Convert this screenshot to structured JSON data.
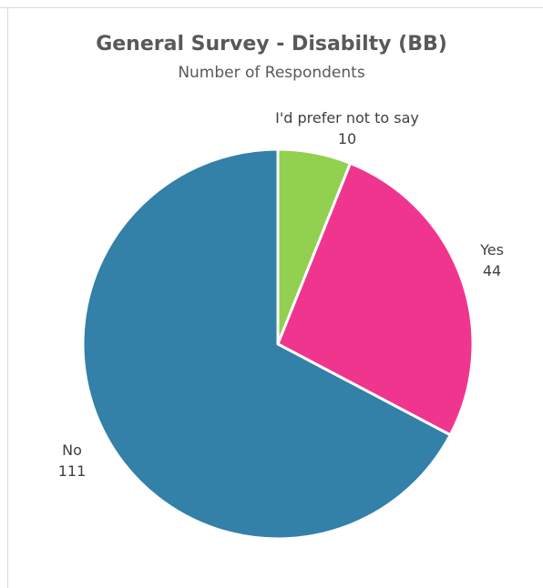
{
  "chart_data": {
    "type": "pie",
    "title": "General Survey - Disabilty (BB)",
    "subtitle": "Number of Respondents",
    "slices": [
      {
        "label": "I'd prefer not to say",
        "value": 10,
        "color": "#92d050"
      },
      {
        "label": "Yes",
        "value": 44,
        "color": "#f0358e"
      },
      {
        "label": "No",
        "value": 111,
        "color": "#3380a8"
      }
    ],
    "start_angle": "12 o'clock",
    "direction": "clockwise",
    "data_labels": "category and value, outside"
  }
}
